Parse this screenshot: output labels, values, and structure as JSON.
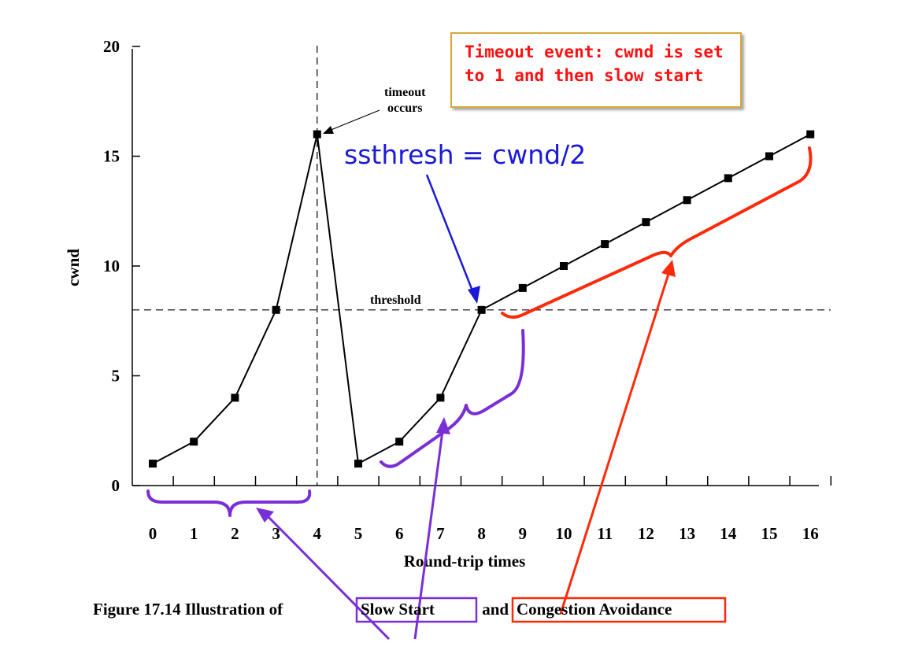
{
  "chart_data": {
    "type": "line",
    "ylabel": "cwnd",
    "xlabel": "Round-trip times",
    "x": [
      0,
      1,
      2,
      3,
      4,
      5,
      6,
      7,
      8,
      9,
      10,
      11,
      12,
      13,
      14,
      15,
      16
    ],
    "values": [
      1,
      2,
      4,
      8,
      16,
      1,
      2,
      4,
      8,
      9,
      10,
      11,
      12,
      13,
      14,
      15,
      16
    ],
    "xticks": [
      "0",
      "1",
      "2",
      "3",
      "4",
      "5",
      "6",
      "7",
      "8",
      "9",
      "10",
      "11",
      "12",
      "13",
      "14",
      "15",
      "16"
    ],
    "yticks": [
      "0",
      "5",
      "10",
      "15",
      "20"
    ],
    "ylim": [
      0,
      20
    ],
    "xlim": [
      0,
      16
    ],
    "threshold": 8,
    "threshold_label": "threshold",
    "timeout_x": 4,
    "timeout_label_1": "timeout",
    "timeout_label_2": "occurs",
    "caption_prefix": "Figure 17.14  Illustration of ",
    "caption_slow": "Slow Start",
    "caption_and": " and ",
    "caption_cong": "Congestion Avoidance"
  },
  "annotations": {
    "timeout_event_line1": "Timeout event: cwnd is set",
    "timeout_event_line2": "to 1 and then slow start",
    "ssthresh": "ssthresh = cwnd/2"
  },
  "colors": {
    "line": "#000000",
    "slow_start": "#7a2fd6",
    "congestion": "#ff2a0a",
    "ssthresh": "#1a1ad8",
    "timeout_text": "#ff1010",
    "timeout_border": "#d8a73a"
  }
}
